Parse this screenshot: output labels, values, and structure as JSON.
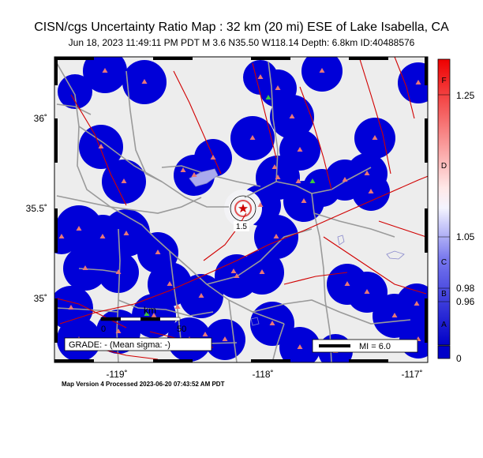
{
  "header": {
    "title": "CISN/cgs Uncertainty Ratio Map : 32 km (20 mi) ESE of Lake Isabella, CA",
    "subtitle": "Jun 18, 2023 11:49:11 PM PDT   M 3.6   N35.50 W118.14   Depth: 6.8km   ID:40488576"
  },
  "map": {
    "lon_ticks": [
      "-119˚",
      "-118˚",
      "-117˚"
    ],
    "lat_ticks": [
      "36˚",
      "35.5˚",
      "35˚"
    ],
    "contour_label": "1.5",
    "scale_label": "km",
    "scale_zero": "0",
    "scale_max": "50",
    "grade_label": "GRADE: - (Mean sigma: -)",
    "mi_label": "MI = 6.0",
    "colors": {
      "background": "#ededed",
      "uncertainty": "#0000d8",
      "roads": "#9a9a9a",
      "faults": "#d10000",
      "station": "#e87777",
      "station_special": "#3cc83c",
      "epicenter": "#cc0000"
    }
  },
  "colorbar": {
    "letters": [
      "F",
      "D",
      "C",
      "B",
      "A"
    ],
    "values": [
      "1.25",
      "1.05",
      "0.98",
      "0.96",
      "0"
    ]
  },
  "footer": {
    "processed": "Map Version 4 Processed 2023-06-20 07:43:52 AM PDT"
  }
}
